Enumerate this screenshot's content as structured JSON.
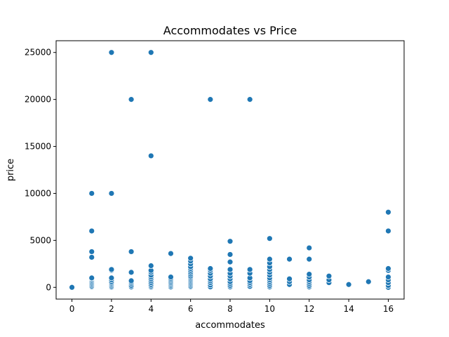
{
  "chart_data": {
    "type": "scatter",
    "title": "Accommodates vs Price",
    "xlabel": "accommodates",
    "ylabel": "price",
    "xlim": [
      -0.8,
      16.8
    ],
    "ylim": [
      -1250,
      26250
    ],
    "xticks": [
      0,
      2,
      4,
      6,
      8,
      10,
      12,
      14,
      16
    ],
    "yticks": [
      0,
      5000,
      10000,
      15000,
      20000,
      25000
    ],
    "grid": false,
    "legend": "none",
    "color": "#1f77b4",
    "points": [
      [
        0,
        0
      ],
      [
        1,
        50
      ],
      [
        1,
        150
      ],
      [
        1,
        300
      ],
      [
        1,
        450
      ],
      [
        1,
        600
      ],
      [
        1,
        750
      ],
      [
        1,
        900
      ],
      [
        1,
        1000
      ],
      [
        1,
        3200
      ],
      [
        1,
        3800
      ],
      [
        1,
        6000
      ],
      [
        1,
        10000
      ],
      [
        2,
        30
      ],
      [
        2,
        150
      ],
      [
        2,
        300
      ],
      [
        2,
        450
      ],
      [
        2,
        600
      ],
      [
        2,
        800
      ],
      [
        2,
        1000
      ],
      [
        2,
        1800
      ],
      [
        2,
        1900
      ],
      [
        2,
        10000
      ],
      [
        2,
        25000
      ],
      [
        3,
        50
      ],
      [
        3,
        200
      ],
      [
        3,
        400
      ],
      [
        3,
        550
      ],
      [
        3,
        700
      ],
      [
        3,
        1600
      ],
      [
        3,
        3800
      ],
      [
        3,
        20000
      ],
      [
        4,
        30
      ],
      [
        4,
        150
      ],
      [
        4,
        300
      ],
      [
        4,
        500
      ],
      [
        4,
        700
      ],
      [
        4,
        900
      ],
      [
        4,
        1100
      ],
      [
        4,
        1300
      ],
      [
        4,
        1600
      ],
      [
        4,
        1800
      ],
      [
        4,
        2300
      ],
      [
        4,
        14000
      ],
      [
        4,
        25000
      ],
      [
        5,
        50
      ],
      [
        5,
        200
      ],
      [
        5,
        350
      ],
      [
        5,
        500
      ],
      [
        5,
        650
      ],
      [
        5,
        800
      ],
      [
        5,
        950
      ],
      [
        5,
        1100
      ],
      [
        5,
        3600
      ],
      [
        6,
        50
      ],
      [
        6,
        150
      ],
      [
        6,
        300
      ],
      [
        6,
        450
      ],
      [
        6,
        600
      ],
      [
        6,
        750
      ],
      [
        6,
        900
      ],
      [
        6,
        1050
      ],
      [
        6,
        1200
      ],
      [
        6,
        1400
      ],
      [
        6,
        1600
      ],
      [
        6,
        1800
      ],
      [
        6,
        2000
      ],
      [
        6,
        2200
      ],
      [
        6,
        2500
      ],
      [
        6,
        2800
      ],
      [
        6,
        3100
      ],
      [
        7,
        50
      ],
      [
        7,
        250
      ],
      [
        7,
        500
      ],
      [
        7,
        700
      ],
      [
        7,
        900
      ],
      [
        7,
        1200
      ],
      [
        7,
        1500
      ],
      [
        7,
        1800
      ],
      [
        7,
        2000
      ],
      [
        7,
        20000
      ],
      [
        8,
        50
      ],
      [
        8,
        200
      ],
      [
        8,
        400
      ],
      [
        8,
        600
      ],
      [
        8,
        900
      ],
      [
        8,
        1200
      ],
      [
        8,
        1500
      ],
      [
        8,
        1900
      ],
      [
        8,
        2700
      ],
      [
        8,
        3500
      ],
      [
        8,
        4900
      ],
      [
        9,
        100
      ],
      [
        9,
        300
      ],
      [
        9,
        500
      ],
      [
        9,
        700
      ],
      [
        9,
        1000
      ],
      [
        9,
        1500
      ],
      [
        9,
        1900
      ],
      [
        9,
        20000
      ],
      [
        10,
        50
      ],
      [
        10,
        200
      ],
      [
        10,
        400
      ],
      [
        10,
        600
      ],
      [
        10,
        800
      ],
      [
        10,
        1000
      ],
      [
        10,
        1300
      ],
      [
        10,
        1600
      ],
      [
        10,
        1900
      ],
      [
        10,
        2200
      ],
      [
        10,
        2600
      ],
      [
        10,
        3000
      ],
      [
        10,
        5200
      ],
      [
        11,
        300
      ],
      [
        11,
        600
      ],
      [
        11,
        900
      ],
      [
        11,
        3000
      ],
      [
        12,
        50
      ],
      [
        12,
        200
      ],
      [
        12,
        400
      ],
      [
        12,
        600
      ],
      [
        12,
        800
      ],
      [
        12,
        1100
      ],
      [
        12,
        1400
      ],
      [
        12,
        3000
      ],
      [
        12,
        4200
      ],
      [
        13,
        500
      ],
      [
        13,
        800
      ],
      [
        13,
        1200
      ],
      [
        14,
        300
      ],
      [
        15,
        600
      ],
      [
        16,
        0
      ],
      [
        16,
        200
      ],
      [
        16,
        500
      ],
      [
        16,
        800
      ],
      [
        16,
        1100
      ],
      [
        16,
        1800
      ],
      [
        16,
        2000
      ],
      [
        16,
        6000
      ],
      [
        16,
        8000
      ]
    ]
  }
}
